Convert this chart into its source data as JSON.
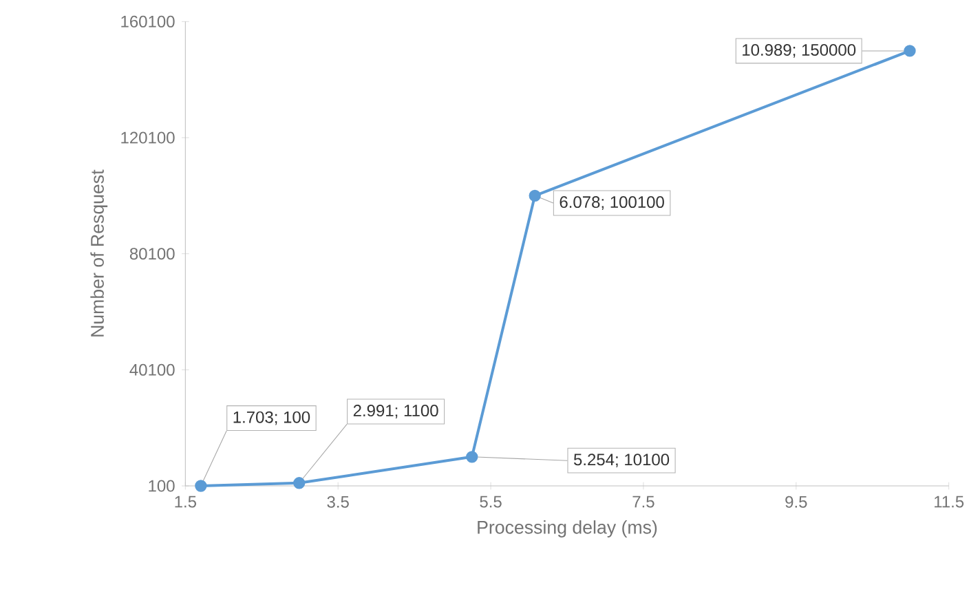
{
  "chart_data": {
    "type": "line",
    "xlabel": "Processing delay (ms)",
    "ylabel": "Number of Resquest",
    "x": [
      1.703,
      2.991,
      5.254,
      6.078,
      10.989
    ],
    "values": [
      100,
      1100,
      10100,
      100100,
      150000
    ],
    "color": "#5b9bd5",
    "marker": "circle",
    "line_style": "solid",
    "xlim": [
      1.5,
      11.5
    ],
    "xticks": [
      1.5,
      3.5,
      5.5,
      7.5,
      9.5,
      11.5
    ],
    "ylim": [
      100,
      160100
    ],
    "yticks": [
      100,
      40100,
      80100,
      120100,
      160100
    ],
    "annotations": [
      {
        "text": "1.703; 100",
        "x": 1.703,
        "y": 100
      },
      {
        "text": "2.991; 1100",
        "x": 2.991,
        "y": 1100
      },
      {
        "text": "5.254; 10100",
        "x": 5.254,
        "y": 10100
      },
      {
        "text": "6.078; 100100",
        "x": 6.078,
        "y": 100100
      },
      {
        "text": "10.989; 150000",
        "x": 10.989,
        "y": 150000
      }
    ]
  }
}
